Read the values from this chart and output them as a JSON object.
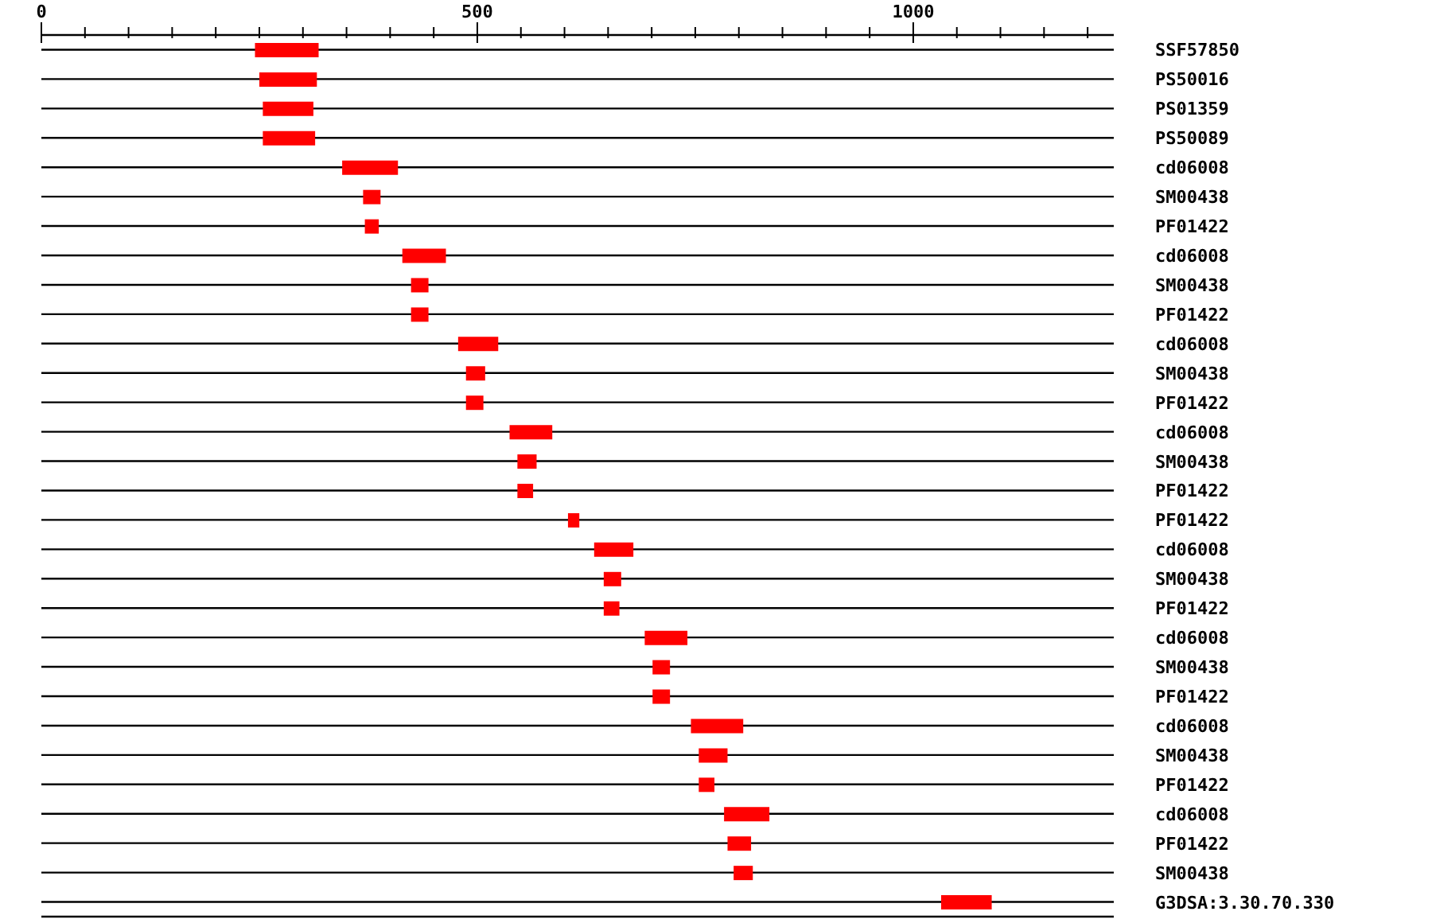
{
  "chart_data": {
    "type": "bar",
    "orientation": "horizontal",
    "grid": "y",
    "categories": [
      "SSF57850",
      "PS50016",
      "PS01359",
      "PS50089",
      "cd06008",
      "SM00438",
      "PF01422",
      "cd06008",
      "SM00438",
      "PF01422",
      "cd06008",
      "SM00438",
      "PF01422",
      "cd06008",
      "SM00438",
      "PF01422",
      "PF01422",
      "cd06008",
      "SM00438",
      "PF01422",
      "cd06008",
      "SM00438",
      "PF01422",
      "cd06008",
      "SM00438",
      "PF01422",
      "cd06008",
      "PF01422",
      "SM00438",
      "G3DSA:3.30.70.330"
    ],
    "series": [
      {
        "color": "#ff0000",
        "base": [
          245,
          250,
          254,
          254,
          345,
          369,
          371,
          414,
          424,
          424,
          478,
          487,
          487,
          537,
          546,
          546,
          604,
          634,
          645,
          645,
          692,
          701,
          701,
          745,
          754,
          754,
          783,
          787,
          794,
          1032
        ],
        "values": [
          73,
          66,
          58,
          60,
          64,
          20,
          16,
          50,
          20,
          20,
          46,
          22,
          20,
          49,
          22,
          18,
          13,
          45,
          20,
          18,
          49,
          20,
          20,
          60,
          33,
          18,
          52,
          27,
          22,
          58
        ]
      }
    ],
    "xlim": [
      0,
      1230
    ],
    "xticks": [
      0,
      {
        "value": 50,
        "label": null
      },
      {
        "value": 100,
        "label": null
      },
      {
        "value": 150,
        "label": null
      },
      {
        "value": 200,
        "label": null
      },
      {
        "value": 250,
        "label": null
      },
      {
        "value": 300,
        "label": null
      },
      {
        "value": 350,
        "label": null
      },
      {
        "value": 400,
        "label": null
      },
      {
        "value": 450,
        "label": null
      },
      500,
      {
        "value": 550,
        "label": null
      },
      {
        "value": 600,
        "label": null
      },
      {
        "value": 650,
        "label": null
      },
      {
        "value": 700,
        "label": null
      },
      {
        "value": 750,
        "label": null
      },
      {
        "value": 800,
        "label": null
      },
      {
        "value": 850,
        "label": null
      },
      {
        "value": 900,
        "label": null
      },
      {
        "value": 950,
        "label": null
      },
      1000,
      {
        "value": 1050,
        "label": null
      },
      {
        "value": 1100,
        "label": null
      },
      {
        "value": 1150,
        "label": null
      },
      {
        "value": 1200,
        "label": null
      }
    ]
  }
}
